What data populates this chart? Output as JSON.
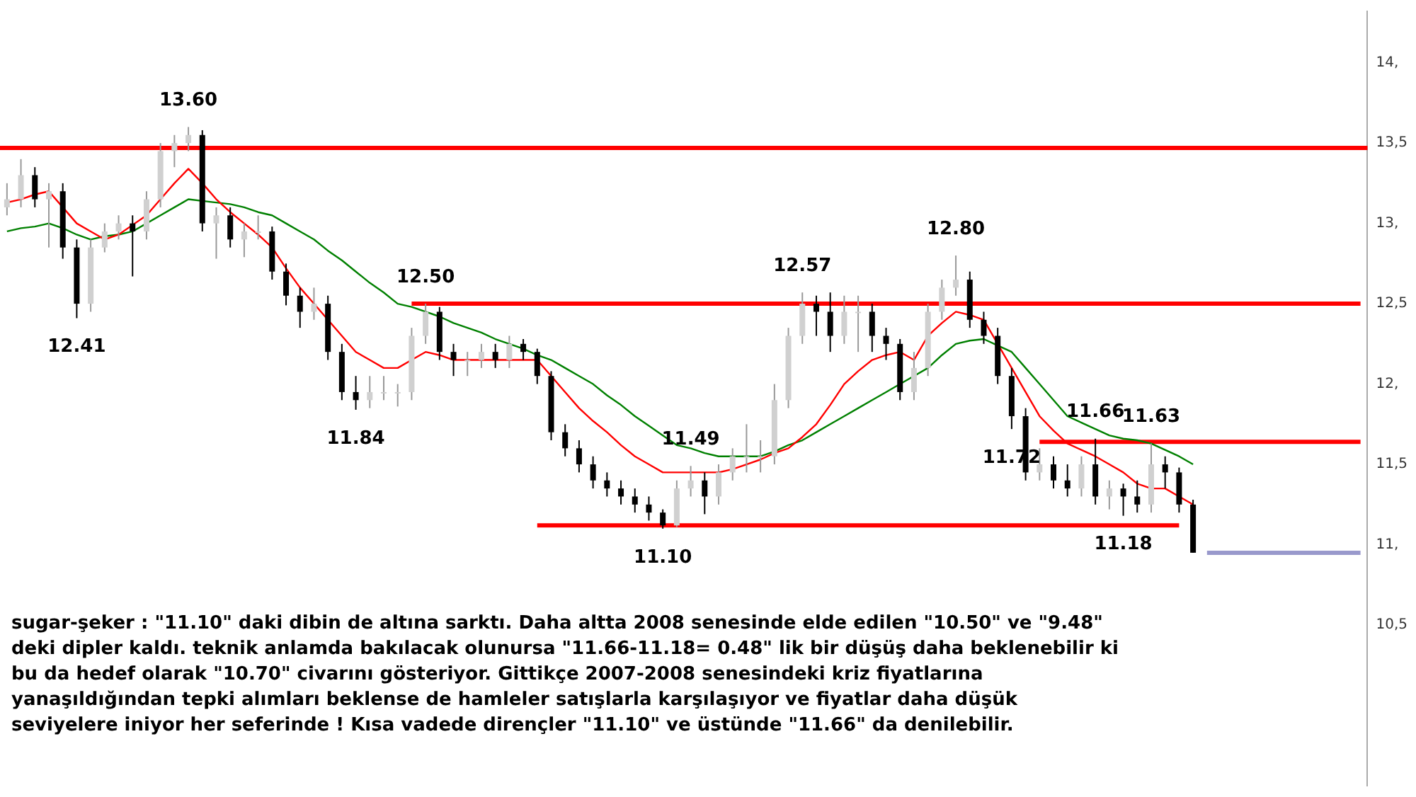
{
  "chart_data": {
    "type": "candlestick",
    "categories": [
      null,
      null,
      null,
      null,
      null,
      null,
      null,
      null,
      null,
      null,
      null,
      null,
      null,
      null,
      null,
      null,
      null,
      null,
      null,
      null,
      null,
      null,
      null,
      null,
      null,
      null,
      null,
      null,
      null,
      null,
      null,
      null,
      null,
      null,
      null,
      null,
      null,
      null,
      null,
      null,
      null,
      null,
      null,
      null,
      null,
      null,
      null,
      null,
      null,
      null,
      null,
      null,
      null,
      null,
      null,
      null,
      null,
      null,
      null,
      null,
      null,
      null,
      null,
      null,
      null,
      null,
      null,
      null,
      null,
      null,
      null,
      null,
      null,
      null,
      null,
      null,
      null,
      null,
      null,
      null,
      null,
      null,
      null,
      null,
      null,
      null,
      null,
      null,
      null,
      null,
      null,
      null,
      null,
      null,
      null,
      null,
      null,
      null
    ],
    "ohlc": [
      [
        13.1,
        13.25,
        13.05,
        13.15
      ],
      [
        13.15,
        13.4,
        13.1,
        13.3
      ],
      [
        13.3,
        13.35,
        13.1,
        13.15
      ],
      [
        13.15,
        13.25,
        12.85,
        13.2
      ],
      [
        13.2,
        13.25,
        12.78,
        12.85
      ],
      [
        12.85,
        12.9,
        12.41,
        12.5
      ],
      [
        12.5,
        12.9,
        12.45,
        12.85
      ],
      [
        12.85,
        13.0,
        12.82,
        12.95
      ],
      [
        12.95,
        13.05,
        12.9,
        13.0
      ],
      [
        13.0,
        13.05,
        12.67,
        12.95
      ],
      [
        12.95,
        13.2,
        12.9,
        13.15
      ],
      [
        13.15,
        13.5,
        13.1,
        13.45
      ],
      [
        13.45,
        13.55,
        13.35,
        13.5
      ],
      [
        13.5,
        13.6,
        13.45,
        13.55
      ],
      [
        13.55,
        13.58,
        12.95,
        13.0
      ],
      [
        13.0,
        13.1,
        12.78,
        13.05
      ],
      [
        13.05,
        13.1,
        12.85,
        12.9
      ],
      [
        12.9,
        13.0,
        12.79,
        12.95
      ],
      [
        12.95,
        13.05,
        12.9,
        12.95
      ],
      [
        12.95,
        12.98,
        12.65,
        12.7
      ],
      [
        12.7,
        12.75,
        12.49,
        12.55
      ],
      [
        12.55,
        12.6,
        12.35,
        12.45
      ],
      [
        12.45,
        12.6,
        12.4,
        12.5
      ],
      [
        12.5,
        12.55,
        12.15,
        12.2
      ],
      [
        12.2,
        12.25,
        11.9,
        11.95
      ],
      [
        11.95,
        12.05,
        11.84,
        11.9
      ],
      [
        11.9,
        12.05,
        11.85,
        11.95
      ],
      [
        11.95,
        12.05,
        11.9,
        11.95
      ],
      [
        11.95,
        12.0,
        11.86,
        11.95
      ],
      [
        11.95,
        12.35,
        11.9,
        12.3
      ],
      [
        12.3,
        12.5,
        12.25,
        12.45
      ],
      [
        12.45,
        12.48,
        12.15,
        12.2
      ],
      [
        12.2,
        12.25,
        12.05,
        12.15
      ],
      [
        12.15,
        12.2,
        12.05,
        12.15
      ],
      [
        12.15,
        12.25,
        12.1,
        12.2
      ],
      [
        12.2,
        12.25,
        12.1,
        12.15
      ],
      [
        12.15,
        12.3,
        12.1,
        12.25
      ],
      [
        12.25,
        12.28,
        12.15,
        12.2
      ],
      [
        12.2,
        12.22,
        12.0,
        12.05
      ],
      [
        12.05,
        12.08,
        11.65,
        11.7
      ],
      [
        11.7,
        11.75,
        11.55,
        11.6
      ],
      [
        11.6,
        11.65,
        11.45,
        11.5
      ],
      [
        11.5,
        11.55,
        11.35,
        11.4
      ],
      [
        11.4,
        11.45,
        11.3,
        11.35
      ],
      [
        11.35,
        11.4,
        11.25,
        11.3
      ],
      [
        11.3,
        11.35,
        11.2,
        11.25
      ],
      [
        11.25,
        11.3,
        11.15,
        11.2
      ],
      [
        11.2,
        11.22,
        11.1,
        11.12
      ],
      [
        11.12,
        11.4,
        11.11,
        11.35
      ],
      [
        11.35,
        11.49,
        11.3,
        11.4
      ],
      [
        11.4,
        11.45,
        11.19,
        11.3
      ],
      [
        11.3,
        11.5,
        11.25,
        11.45
      ],
      [
        11.45,
        11.6,
        11.4,
        11.55
      ],
      [
        11.55,
        11.75,
        11.45,
        11.55
      ],
      [
        11.55,
        11.65,
        11.45,
        11.55
      ],
      [
        11.55,
        12.0,
        11.5,
        11.9
      ],
      [
        11.9,
        12.35,
        11.85,
        12.3
      ],
      [
        12.3,
        12.57,
        12.25,
        12.5
      ],
      [
        12.5,
        12.55,
        12.3,
        12.45
      ],
      [
        12.45,
        12.57,
        12.2,
        12.3
      ],
      [
        12.3,
        12.55,
        12.25,
        12.45
      ],
      [
        12.45,
        12.55,
        12.2,
        12.45
      ],
      [
        12.45,
        12.5,
        12.2,
        12.3
      ],
      [
        12.3,
        12.35,
        12.15,
        12.25
      ],
      [
        12.25,
        12.28,
        11.9,
        11.95
      ],
      [
        11.95,
        12.2,
        11.9,
        12.1
      ],
      [
        12.1,
        12.5,
        12.05,
        12.45
      ],
      [
        12.45,
        12.65,
        12.4,
        12.6
      ],
      [
        12.6,
        12.8,
        12.55,
        12.65
      ],
      [
        12.65,
        12.7,
        12.35,
        12.4
      ],
      [
        12.4,
        12.45,
        12.25,
        12.3
      ],
      [
        12.3,
        12.35,
        12.0,
        12.05
      ],
      [
        12.05,
        12.1,
        11.72,
        11.8
      ],
      [
        11.8,
        11.85,
        11.4,
        11.45
      ],
      [
        11.45,
        11.6,
        11.4,
        11.5
      ],
      [
        11.5,
        11.55,
        11.35,
        11.4
      ],
      [
        11.4,
        11.5,
        11.3,
        11.35
      ],
      [
        11.35,
        11.55,
        11.3,
        11.5
      ],
      [
        11.5,
        11.66,
        11.25,
        11.3
      ],
      [
        11.3,
        11.4,
        11.22,
        11.35
      ],
      [
        11.35,
        11.38,
        11.18,
        11.3
      ],
      [
        11.3,
        11.4,
        11.2,
        11.25
      ],
      [
        11.25,
        11.63,
        11.2,
        11.5
      ],
      [
        11.5,
        11.55,
        11.35,
        11.45
      ],
      [
        11.45,
        11.48,
        11.2,
        11.25
      ],
      [
        11.25,
        11.28,
        10.95,
        10.95
      ],
      null,
      null,
      null,
      null,
      null,
      null,
      null,
      null,
      null,
      null,
      null,
      null
    ],
    "series": [
      {
        "type": "line",
        "color": "#ff0000",
        "values": [
          13.13,
          13.15,
          13.18,
          13.2,
          13.1,
          13.0,
          12.95,
          12.9,
          12.93,
          12.99,
          13.05,
          13.15,
          13.25,
          13.34,
          13.25,
          13.15,
          13.07,
          13.0,
          12.93,
          12.85,
          12.72,
          12.6,
          12.5,
          12.4,
          12.3,
          12.2,
          12.15,
          12.1,
          12.1,
          12.15,
          12.2,
          12.18,
          12.15,
          12.15,
          12.15,
          12.15,
          12.15,
          12.15,
          12.15,
          12.05,
          11.95,
          11.85,
          11.77,
          11.7,
          11.62,
          11.55,
          11.5,
          11.45,
          11.45,
          11.45,
          11.45,
          11.45,
          11.47,
          11.5,
          11.53,
          11.57,
          11.6,
          11.67,
          11.75,
          11.87,
          12.0,
          12.08,
          12.15,
          12.18,
          12.2,
          12.15,
          12.3,
          12.38,
          12.45,
          12.43,
          12.4,
          12.25,
          12.1,
          11.95,
          11.8,
          11.71,
          11.63,
          11.59,
          11.55,
          11.5,
          11.45,
          11.38,
          11.35,
          11.35,
          11.3,
          11.25,
          null,
          null,
          null,
          null,
          null,
          null,
          null,
          null,
          null,
          null,
          null,
          null
        ]
      },
      {
        "type": "line",
        "color": "#008000",
        "values": [
          12.95,
          12.97,
          12.98,
          13.0,
          12.97,
          12.93,
          12.9,
          12.92,
          12.93,
          12.95,
          13.0,
          13.05,
          13.1,
          13.15,
          13.14,
          13.13,
          13.12,
          13.1,
          13.07,
          13.05,
          13.0,
          12.95,
          12.9,
          12.83,
          12.77,
          12.7,
          12.63,
          12.57,
          12.5,
          12.48,
          12.45,
          12.42,
          12.38,
          12.35,
          12.32,
          12.28,
          12.25,
          12.22,
          12.18,
          12.15,
          12.1,
          12.05,
          12.0,
          11.93,
          11.87,
          11.8,
          11.74,
          11.68,
          11.62,
          11.6,
          11.57,
          11.55,
          11.55,
          11.55,
          11.55,
          11.58,
          11.62,
          11.65,
          11.7,
          11.75,
          11.8,
          11.85,
          11.9,
          11.95,
          12.0,
          12.05,
          12.1,
          12.18,
          12.25,
          12.27,
          12.28,
          12.24,
          12.2,
          12.1,
          12.0,
          11.9,
          11.8,
          11.76,
          11.72,
          11.68,
          11.66,
          11.65,
          11.63,
          11.59,
          11.55,
          11.5,
          null,
          null,
          null,
          null,
          null,
          null,
          null,
          null,
          null,
          null,
          null,
          null
        ]
      },
      {
        "type": "line",
        "color": "#ff0000",
        "values": [
          null,
          null,
          null,
          null,
          null,
          null,
          null,
          null,
          null,
          null,
          null,
          null,
          null,
          null,
          null,
          null,
          null,
          null,
          null,
          null,
          null,
          null,
          null,
          null,
          null,
          null,
          null,
          null,
          null,
          12.5,
          12.5,
          12.5,
          12.5,
          12.5,
          12.5,
          12.5,
          12.5,
          12.5,
          12.5,
          12.5,
          12.5,
          12.5,
          12.5,
          12.5,
          12.5,
          12.5,
          12.5,
          12.5,
          12.5,
          12.5,
          12.5,
          12.5,
          12.5,
          12.5,
          12.5,
          12.5,
          12.5,
          12.5,
          12.5,
          12.5,
          12.5,
          12.5,
          12.5,
          12.5,
          12.5,
          12.5,
          12.5,
          12.5,
          12.5,
          12.5,
          12.5,
          12.5,
          12.5,
          12.5,
          12.5,
          12.5,
          12.5,
          12.5,
          12.5,
          12.5,
          12.5,
          12.5,
          12.5,
          12.5,
          12.5,
          12.5,
          12.5,
          12.5,
          12.5,
          12.5,
          12.5,
          12.5,
          12.5,
          12.5,
          12.5,
          12.5,
          12.5,
          12.5
        ]
      },
      {
        "type": "line",
        "color": "#ff0000",
        "values": [
          null,
          null,
          null,
          null,
          null,
          null,
          null,
          null,
          null,
          null,
          null,
          null,
          null,
          null,
          null,
          null,
          null,
          null,
          null,
          null,
          null,
          null,
          null,
          null,
          null,
          null,
          null,
          null,
          null,
          null,
          null,
          null,
          null,
          null,
          null,
          null,
          null,
          null,
          null,
          null,
          null,
          null,
          null,
          null,
          null,
          null,
          null,
          null,
          null,
          null,
          null,
          null,
          null,
          null,
          null,
          null,
          null,
          null,
          null,
          null,
          null,
          null,
          null,
          null,
          null,
          null,
          null,
          null,
          null,
          null,
          null,
          null,
          null,
          null,
          11.64,
          11.64,
          11.64,
          11.64,
          11.64,
          11.64,
          11.64,
          11.64,
          11.64,
          11.64,
          11.64,
          11.64,
          11.64,
          11.64,
          11.64,
          11.64,
          11.64,
          11.64,
          11.64,
          11.64,
          11.64,
          11.64,
          11.64,
          11.64
        ]
      },
      {
        "type": "line",
        "color": "#ff0000",
        "values": [
          null,
          null,
          null,
          null,
          null,
          null,
          null,
          null,
          null,
          null,
          null,
          null,
          null,
          null,
          null,
          null,
          null,
          null,
          null,
          null,
          null,
          null,
          null,
          null,
          null,
          null,
          null,
          null,
          null,
          null,
          null,
          null,
          null,
          null,
          null,
          null,
          null,
          null,
          11.12,
          11.12,
          11.12,
          11.12,
          11.12,
          11.12,
          11.12,
          11.12,
          11.12,
          11.12,
          11.12,
          11.12,
          11.12,
          11.12,
          11.12,
          11.12,
          11.12,
          11.12,
          11.12,
          11.12,
          11.12,
          11.12,
          11.12,
          11.12,
          11.12,
          11.12,
          11.12,
          11.12,
          11.12,
          11.12,
          11.12,
          11.12,
          11.12,
          11.12,
          11.12,
          11.12,
          11.12,
          11.12,
          11.12,
          11.12,
          11.12,
          11.12,
          11.12,
          11.12,
          11.12,
          11.12,
          11.12,
          null,
          null,
          null,
          null,
          null,
          null,
          null,
          null,
          null,
          null,
          null,
          null,
          null
        ]
      },
      {
        "type": "line",
        "color": "#9999cc",
        "values": [
          null,
          null,
          null,
          null,
          null,
          null,
          null,
          null,
          null,
          null,
          null,
          null,
          null,
          null,
          null,
          null,
          null,
          null,
          null,
          null,
          null,
          null,
          null,
          null,
          null,
          null,
          null,
          null,
          null,
          null,
          null,
          null,
          null,
          null,
          null,
          null,
          null,
          null,
          null,
          null,
          null,
          null,
          null,
          null,
          null,
          null,
          null,
          null,
          null,
          null,
          null,
          null,
          null,
          null,
          null,
          null,
          null,
          null,
          null,
          null,
          null,
          null,
          null,
          null,
          null,
          null,
          null,
          null,
          null,
          null,
          null,
          null,
          null,
          null,
          null,
          null,
          null,
          null,
          null,
          null,
          null,
          null,
          null,
          null,
          null,
          null,
          10.95,
          10.95,
          10.95,
          10.95,
          10.95,
          10.95,
          10.95,
          10.95,
          10.95,
          10.95,
          10.95,
          10.95
        ]
      }
    ],
    "ref_lines": [
      {
        "axis": "y",
        "value": 13.47,
        "color": "#ff0000"
      }
    ],
    "ylim": [
      9.5,
      14.32
    ],
    "yticks": [
      {
        "value": 10.5,
        "label": "10,5"
      },
      {
        "value": 11,
        "label": "11,"
      },
      {
        "value": 11.5,
        "label": "11,5"
      },
      {
        "value": 12,
        "label": "12,"
      },
      {
        "value": 12.5,
        "label": "12,5"
      },
      {
        "value": 13,
        "label": "13,"
      },
      {
        "value": 13.5,
        "label": "13,5"
      },
      {
        "value": 14,
        "label": "14,"
      }
    ],
    "tick_labels": "y",
    "grid": false,
    "legend": false,
    "annotations": [
      {
        "text": "13.60",
        "y": 13.6
      },
      {
        "text": "12.41",
        "y": 12.41
      },
      {
        "text": "11.84",
        "y": 11.84
      },
      {
        "text": "12.50",
        "y": 12.5
      },
      {
        "text": "11.49",
        "y": 11.49
      },
      {
        "text": "11.10",
        "y": 11.1
      },
      {
        "text": "12.57",
        "y": 12.57
      },
      {
        "text": "12.80",
        "y": 12.8
      },
      {
        "text": "11.72",
        "y": 11.72
      },
      {
        "text": "11.66",
        "y": 11.66
      },
      {
        "text": "11.63",
        "y": 11.63
      },
      {
        "text": "11.18",
        "y": 11.18
      },
      "sugar-şeker : \"11.10\" daki dibin de altına sarktı. Daha altta 2008 senesinde elde edilen \"10.50\" ve \"9.48\" deki dipler kaldı. teknik anlamda bakılacak olunursa \"11.66-11.18= 0.48\" lik bir düşüş daha beklenebilir ki bu da hedef olarak \"10.70\" civarını gösteriyor. Gittikçe 2007-2008 senesindeki kriz fiyatlarına yanaşıldığından tepki alımları beklense de hamleler satışlarla karşılaşıyor ve fiyatlar daha düşük seviyelere iniyor her seferinde ! Kısa vadede dirençler \"11.10\" ve üstünde \"11.66\" da denilebilir."
    ]
  }
}
